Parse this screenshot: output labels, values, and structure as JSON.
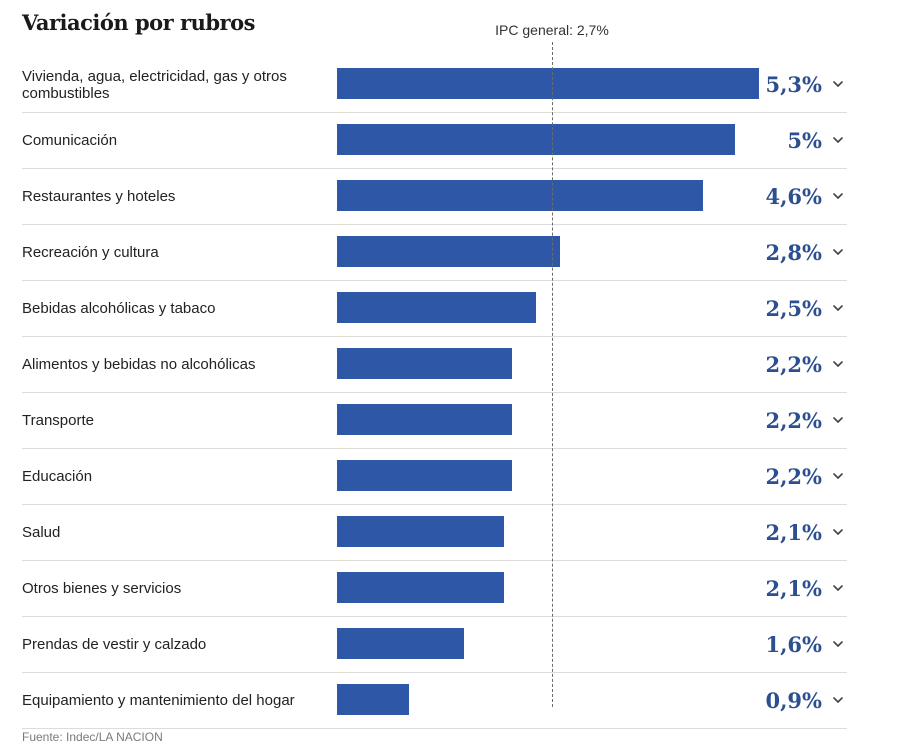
{
  "chart_data": {
    "type": "bar",
    "orientation": "horizontal",
    "title": "Variación por rubros",
    "unit": "%",
    "categories": [
      "Vivienda, agua, electricidad, gas y otros combustibles",
      "Comunicación",
      "Restaurantes y hoteles",
      "Recreación y cultura",
      "Bebidas alcohólicas y tabaco",
      "Alimentos y bebidas no alcohólicas",
      "Transporte",
      "Educación",
      "Salud",
      "Otros bienes y servicios",
      "Prendas de vestir y calzado",
      "Equipamiento y mantenimiento del hogar"
    ],
    "values": [
      5.3,
      5.0,
      4.6,
      2.8,
      2.5,
      2.2,
      2.2,
      2.2,
      2.1,
      2.1,
      1.6,
      0.9
    ],
    "value_labels": [
      "5,3%",
      "5%",
      "4,6%",
      "2,8%",
      "2,5%",
      "2,2%",
      "2,2%",
      "2,2%",
      "2,1%",
      "2,1%",
      "1,6%",
      "0,9%"
    ],
    "xlim": [
      0,
      5.3
    ],
    "reference_line": {
      "value": 2.7,
      "label": "IPC general: 2,7%"
    },
    "source": "Fuente: Indec/LA NACION",
    "colors": {
      "bar": "#2e57a8",
      "value_text": "#2b4f8f",
      "reference_line": "#6b6b6b"
    }
  }
}
